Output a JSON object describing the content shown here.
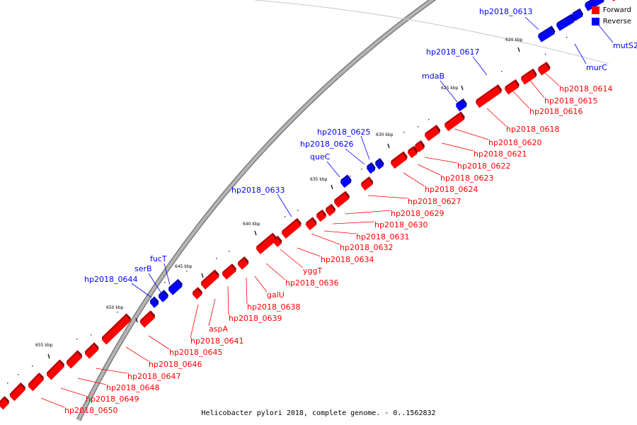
{
  "caption": "Helicobacter pylori 2018, complete genome. - 0..1562832",
  "legend": [
    {
      "label": "Forward",
      "color": "#ff0000"
    },
    {
      "label": "Reverse",
      "color": "#0000ff"
    }
  ],
  "colors": {
    "forward": "#ff0000",
    "reverse": "#0000ff",
    "backbone": "#b5b5b5"
  },
  "ticks": [
    "620 kbp",
    "625 kbp",
    "630 kbp",
    "635 kbp",
    "640 kbp",
    "645 kbp",
    "650 kbp",
    "655 kbp"
  ],
  "genes": [
    {
      "name": "hp2018_0613",
      "strand": "reverse"
    },
    {
      "name": "mutS2",
      "strand": "reverse"
    },
    {
      "name": "murC",
      "strand": "reverse"
    },
    {
      "name": "hp2018_0614",
      "strand": "forward"
    },
    {
      "name": "hp2018_0615",
      "strand": "forward"
    },
    {
      "name": "hp2018_0616",
      "strand": "forward"
    },
    {
      "name": "hp2018_0617",
      "strand": "reverse"
    },
    {
      "name": "mdaB",
      "strand": "reverse"
    },
    {
      "name": "hp2018_0618",
      "strand": "forward"
    },
    {
      "name": "hp2018_0620",
      "strand": "forward"
    },
    {
      "name": "hp2018_0621",
      "strand": "forward"
    },
    {
      "name": "hp2018_0622",
      "strand": "forward"
    },
    {
      "name": "hp2018_0623",
      "strand": "forward"
    },
    {
      "name": "hp2018_0624",
      "strand": "forward"
    },
    {
      "name": "hp2018_0625",
      "strand": "reverse"
    },
    {
      "name": "hp2018_0626",
      "strand": "reverse"
    },
    {
      "name": "queC",
      "strand": "reverse"
    },
    {
      "name": "hp2018_0627",
      "strand": "forward"
    },
    {
      "name": "hp2018_0629",
      "strand": "forward"
    },
    {
      "name": "hp2018_0630",
      "strand": "forward"
    },
    {
      "name": "hp2018_0631",
      "strand": "forward"
    },
    {
      "name": "hp2018_0632",
      "strand": "forward"
    },
    {
      "name": "hp2018_0633",
      "strand": "reverse"
    },
    {
      "name": "hp2018_0634",
      "strand": "forward"
    },
    {
      "name": "yggT",
      "strand": "forward"
    },
    {
      "name": "hp2018_0636",
      "strand": "forward"
    },
    {
      "name": "galU",
      "strand": "forward"
    },
    {
      "name": "hp2018_0638",
      "strand": "forward"
    },
    {
      "name": "hp2018_0639",
      "strand": "forward"
    },
    {
      "name": "fucT",
      "strand": "reverse"
    },
    {
      "name": "serB",
      "strand": "reverse"
    },
    {
      "name": "hp2018_0644",
      "strand": "reverse"
    },
    {
      "name": "aspA",
      "strand": "forward"
    },
    {
      "name": "hp2018_0641",
      "strand": "forward"
    },
    {
      "name": "hp2018_0645",
      "strand": "forward"
    },
    {
      "name": "hp2018_0646",
      "strand": "forward"
    },
    {
      "name": "hp2018_0647",
      "strand": "forward"
    },
    {
      "name": "hp2018_0648",
      "strand": "forward"
    },
    {
      "name": "hp2018_0649",
      "strand": "forward"
    },
    {
      "name": "hp2018_0650",
      "strand": "forward"
    }
  ]
}
